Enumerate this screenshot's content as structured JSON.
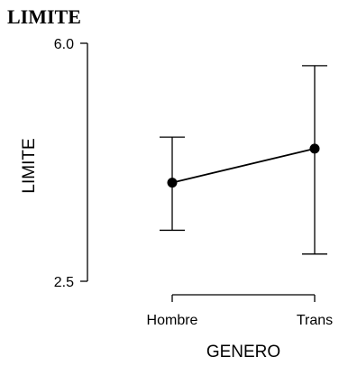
{
  "chart_data": {
    "type": "line",
    "title": "LIMITE",
    "xlabel": "GENERO",
    "ylabel": "LIMITE",
    "categories": [
      "Hombre",
      "Trans"
    ],
    "values": [
      3.95,
      4.45
    ],
    "error_low": [
      3.25,
      2.9
    ],
    "error_high": [
      4.62,
      5.67
    ],
    "ylim": [
      2.5,
      6.0
    ],
    "yticks": [
      "2.5",
      "6.0"
    ],
    "grid": false,
    "legend": "none"
  }
}
